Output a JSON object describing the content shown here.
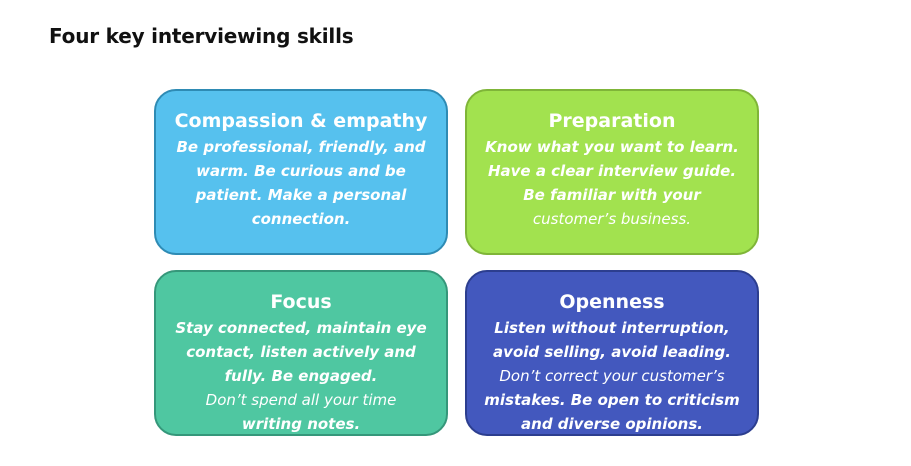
{
  "title": "Four key interviewing skills",
  "colors": {
    "compassion": "#56c1ee",
    "preparation": "#a2e24f",
    "focus": "#4fc7a1",
    "openness": "#4358be"
  },
  "cards": {
    "compassion": {
      "title": "Compassion & empathy",
      "lines": [
        "Be professional, friendly, and",
        "warm. Be curious and be",
        "patient. Make a personal",
        "connection."
      ]
    },
    "preparation": {
      "title": "Preparation",
      "lines": [
        "Know what you want to learn.",
        "Have a clear interview guide.",
        "Be familiar with your",
        "customer’s business."
      ]
    },
    "focus": {
      "title": "Focus",
      "lines": [
        "Stay connected, maintain eye",
        "contact, listen actively and",
        "fully. Be engaged.",
        "Don’t spend all your time",
        "writing notes."
      ]
    },
    "openness": {
      "title": "Openness",
      "lines": [
        "Listen without interruption,",
        "avoid selling, avoid leading.",
        "Don’t correct your customer’s",
        "mistakes. Be open to criticism",
        "and diverse opinions."
      ]
    }
  }
}
